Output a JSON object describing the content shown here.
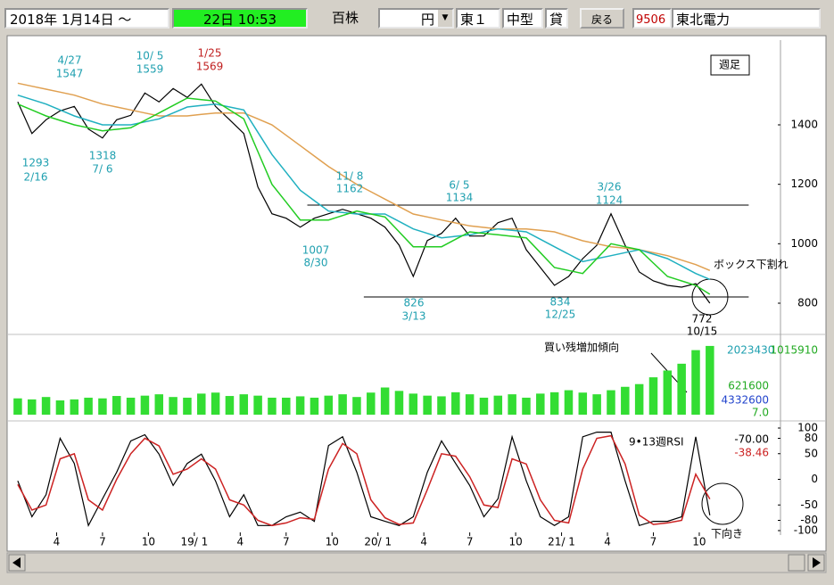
{
  "toolbar": {
    "date_from": "2018年 1月14日 ～",
    "date_to": "22日 10:53",
    "unit": "百株",
    "currency": "円",
    "market": "東１",
    "size": "中型",
    "lend": "貸",
    "back_button": "戻る",
    "code": "9506",
    "name": "東北電力"
  },
  "period_label": "週足",
  "chart_data": [
    {
      "type": "line",
      "x": [
        0,
        4,
        8,
        12,
        16,
        20,
        24,
        28,
        32,
        36,
        40,
        44,
        48,
        52,
        56,
        60,
        64,
        68,
        72,
        76,
        80,
        84,
        88,
        92,
        96,
        100,
        104,
        108,
        112,
        116,
        120,
        124,
        128,
        132,
        136,
        140,
        144,
        148,
        152,
        156,
        160,
        164,
        168,
        172,
        176,
        180,
        184,
        188,
        192,
        196
      ],
      "xlim": [
        -2,
        216
      ],
      "ylim": [
        710,
        1670
      ],
      "yticks": [
        800,
        1000,
        1200,
        1400
      ],
      "series": [
        {
          "color": "#000000",
          "values": [
            1477,
            1371,
            1417,
            1447,
            1462,
            1386,
            1356,
            1417,
            1432,
            1507,
            1477,
            1522,
            1492,
            1537,
            1462,
            1417,
            1371,
            1191,
            1101,
            1086,
            1056,
            1086,
            1101,
            1116,
            1101,
            1086,
            1056,
            995,
            890,
            1011,
            1035,
            1086,
            1026,
            1026,
            1071,
            1086,
            980,
            920,
            860,
            890,
            950,
            995,
            1101,
            995,
            905,
            875,
            860,
            854,
            866,
            800
          ]
        },
        {
          "color": "#e0a050",
          "values": [
            1540,
            1530,
            1520,
            1510,
            1500,
            1485,
            1470,
            1460,
            1450,
            1440,
            1430,
            1430,
            1430,
            1435,
            1440,
            1440,
            1440,
            1420,
            1400,
            1365,
            1330,
            1295,
            1260,
            1230,
            1200,
            1175,
            1150,
            1125,
            1100,
            1090,
            1080,
            1070,
            1060,
            1055,
            1050,
            1050,
            1050,
            1045,
            1040,
            1025,
            1010,
            1000,
            990,
            985,
            980,
            970,
            960,
            945,
            930,
            910
          ]
        },
        {
          "color": "#20b0c0",
          "values": [
            1500,
            1485,
            1470,
            1450,
            1430,
            1415,
            1400,
            1400,
            1400,
            1410,
            1420,
            1440,
            1460,
            1465,
            1470,
            1460,
            1450,
            1375,
            1300,
            1240,
            1180,
            1145,
            1110,
            1105,
            1100,
            1100,
            1100,
            1075,
            1050,
            1035,
            1020,
            1025,
            1030,
            1040,
            1050,
            1045,
            1040,
            1015,
            990,
            965,
            940,
            950,
            960,
            970,
            980,
            965,
            950,
            925,
            900,
            880
          ]
        },
        {
          "color": "#22cc22",
          "values": [
            1470,
            1450,
            1430,
            1415,
            1400,
            1390,
            1380,
            1385,
            1390,
            1415,
            1440,
            1465,
            1490,
            1485,
            1480,
            1450,
            1420,
            1310,
            1200,
            1140,
            1080,
            1080,
            1080,
            1095,
            1110,
            1100,
            1090,
            1040,
            990,
            990,
            990,
            1015,
            1040,
            1035,
            1030,
            1025,
            1020,
            970,
            920,
            910,
            900,
            950,
            1000,
            990,
            980,
            935,
            890,
            875,
            860,
            830
          ]
        }
      ],
      "box_lines": [
        {
          "value": 1130,
          "from": 82,
          "to": 207
        },
        {
          "value": 821,
          "from": 98,
          "to": 207
        }
      ],
      "box_break": "ボックス下割れ",
      "highs_lows": [
        {
          "date": "4/27",
          "price": 1547
        },
        {
          "date": "10/ 5",
          "price": 1559
        },
        {
          "date": "1/25",
          "price": 1569
        },
        {
          "date": "2/16",
          "price": 1293
        },
        {
          "date": "7/ 6",
          "price": 1318
        },
        {
          "date": "11/ 8",
          "price": 1162
        },
        {
          "date": "8/30",
          "price": 1007
        },
        {
          "date": "6/ 5",
          "price": 1134
        },
        {
          "date": "3/13",
          "price": 826
        },
        {
          "date": "3/26",
          "price": 1124
        },
        {
          "date": "12/25",
          "price": 834
        },
        {
          "date": "10/15",
          "price": 772
        }
      ]
    },
    {
      "type": "bar",
      "x": [
        0,
        4,
        8,
        12,
        16,
        20,
        24,
        28,
        32,
        36,
        40,
        44,
        48,
        52,
        56,
        60,
        64,
        68,
        72,
        76,
        80,
        84,
        88,
        92,
        96,
        100,
        104,
        108,
        112,
        116,
        120,
        124,
        128,
        132,
        136,
        140,
        144,
        148,
        152,
        156,
        160,
        164,
        168,
        172,
        176,
        180,
        184,
        188,
        192,
        196
      ],
      "xlim": [
        -2,
        216
      ],
      "ylim": [
        0,
        2100000
      ],
      "color": "#33dd33",
      "values": [
        480000,
        450000,
        520000,
        420000,
        450000,
        500000,
        480000,
        550000,
        500000,
        560000,
        600000,
        520000,
        500000,
        620000,
        650000,
        550000,
        600000,
        560000,
        500000,
        500000,
        540000,
        500000,
        560000,
        600000,
        520000,
        650000,
        800000,
        700000,
        620000,
        560000,
        540000,
        660000,
        600000,
        500000,
        560000,
        600000,
        500000,
        620000,
        660000,
        720000,
        650000,
        600000,
        720000,
        820000,
        900000,
        1100000,
        1300000,
        1500000,
        1900000,
        2023430
      ],
      "labels": [
        "2023430",
        "1015910",
        "621600",
        "4332600",
        "7.0"
      ],
      "annotation": "買い残増加傾向"
    },
    {
      "type": "line",
      "title": "9•13週RSI",
      "x": [
        0,
        4,
        8,
        12,
        16,
        20,
        24,
        28,
        32,
        36,
        40,
        44,
        48,
        52,
        56,
        60,
        64,
        68,
        72,
        76,
        80,
        84,
        88,
        92,
        96,
        100,
        104,
        108,
        112,
        116,
        120,
        124,
        128,
        132,
        136,
        140,
        144,
        148,
        152,
        156,
        160,
        164,
        168,
        172,
        176,
        180,
        184,
        188,
        192,
        196
      ],
      "xlim": [
        -2,
        216
      ],
      "ylim": [
        -100,
        100
      ],
      "yticks": [
        100,
        80,
        50,
        0,
        -50,
        -80,
        -100
      ],
      "xticks": [
        {
          "value": 11,
          "label": "4"
        },
        {
          "value": 24,
          "label": "7"
        },
        {
          "value": 37,
          "label": "10"
        },
        {
          "value": 50,
          "label": "19/ 1"
        },
        {
          "value": 63,
          "label": "4"
        },
        {
          "value": 76,
          "label": "7"
        },
        {
          "value": 89,
          "label": "10"
        },
        {
          "value": 102,
          "label": "20/ 1"
        },
        {
          "value": 115,
          "label": "4"
        },
        {
          "value": 128,
          "label": "7"
        },
        {
          "value": 141,
          "label": "10"
        },
        {
          "value": 154,
          "label": "21/ 1"
        },
        {
          "value": 167,
          "label": "4"
        },
        {
          "value": 180,
          "label": "7"
        },
        {
          "value": 193,
          "label": "10"
        }
      ],
      "series": [
        {
          "color": "#000000",
          "current": "-70.00",
          "values": [
            -3,
            -73,
            -30,
            80,
            31,
            -90,
            -38,
            14,
            75,
            87,
            49,
            -12,
            31,
            49,
            -3,
            -73,
            -30,
            -90,
            -90,
            -73,
            -64,
            -82,
            66,
            83,
            14,
            -73,
            -82,
            -90,
            -73,
            14,
            75,
            31,
            -12,
            -73,
            -38,
            83,
            -3,
            -73,
            -90,
            -73,
            83,
            92,
            92,
            -3,
            -90,
            -82,
            -82,
            -73,
            83,
            -70
          ]
        },
        {
          "color": "#cc2222",
          "current": "-38.46",
          "values": [
            -10,
            -60,
            -50,
            40,
            50,
            -40,
            -60,
            0,
            50,
            80,
            65,
            10,
            20,
            40,
            20,
            -40,
            -50,
            -80,
            -90,
            -85,
            -75,
            -78,
            20,
            70,
            50,
            -40,
            -75,
            -88,
            -85,
            -20,
            50,
            45,
            5,
            -50,
            -55,
            40,
            30,
            -40,
            -80,
            -85,
            20,
            80,
            85,
            30,
            -70,
            -88,
            -85,
            -80,
            10,
            -38.46
          ]
        }
      ],
      "annotation": "下向き"
    }
  ]
}
